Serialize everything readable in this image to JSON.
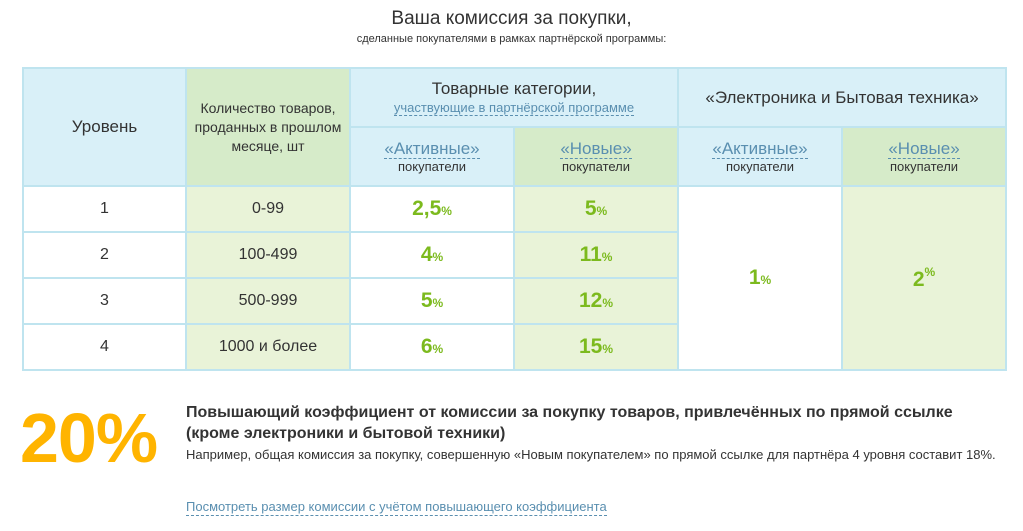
{
  "title": "Ваша комиссия за покупки,",
  "subtitle": "сделанные покупателями в рамках партнёрской программы:",
  "table": {
    "col_level": "Уровень",
    "col_qty": "Количество товаров, проданных в прошлом месяце, шт",
    "group1_title": "Товарные категории,",
    "group1_sub": "участвующие в партнёрской программе",
    "group2_title": "«Электроника и Бытовая техника»",
    "active_label": "«Активные»",
    "new_label": "«Новые»",
    "buyers_word": "покупатели",
    "rows": [
      {
        "level": "1",
        "qty": "0-99",
        "active": "2,5",
        "new": "5"
      },
      {
        "level": "2",
        "qty": "100-499",
        "active": "4",
        "new": "11"
      },
      {
        "level": "3",
        "qty": "500-999",
        "active": "5",
        "new": "12"
      },
      {
        "level": "4",
        "qty": "1000 и более",
        "active": "6",
        "new": "15"
      }
    ],
    "electronics_active": "1",
    "electronics_new": "2",
    "percent_sign": "%"
  },
  "bonus": {
    "value": "20%",
    "heading": "Повышающий коэффициент от комиссии за покупку товаров, привлечённых по прямой ссылке (кроме электроники и бытовой техники)",
    "text": "Например, общая комиссия за покупку, совершенную «Новым покупателем» по прямой ссылке для партнёра 4 уровня составит 18%.",
    "link": "Посмотреть размер комиссии с учётом повышающего коэффициента"
  },
  "colors": {
    "accent_green": "#7cba1e",
    "accent_orange": "#ffb400",
    "link_blue": "#5a8fb0",
    "header_blue": "#d9f0f8",
    "header_green": "#d6ebc9",
    "cell_green": "#e9f3d8",
    "border": "#bfe4ef"
  }
}
